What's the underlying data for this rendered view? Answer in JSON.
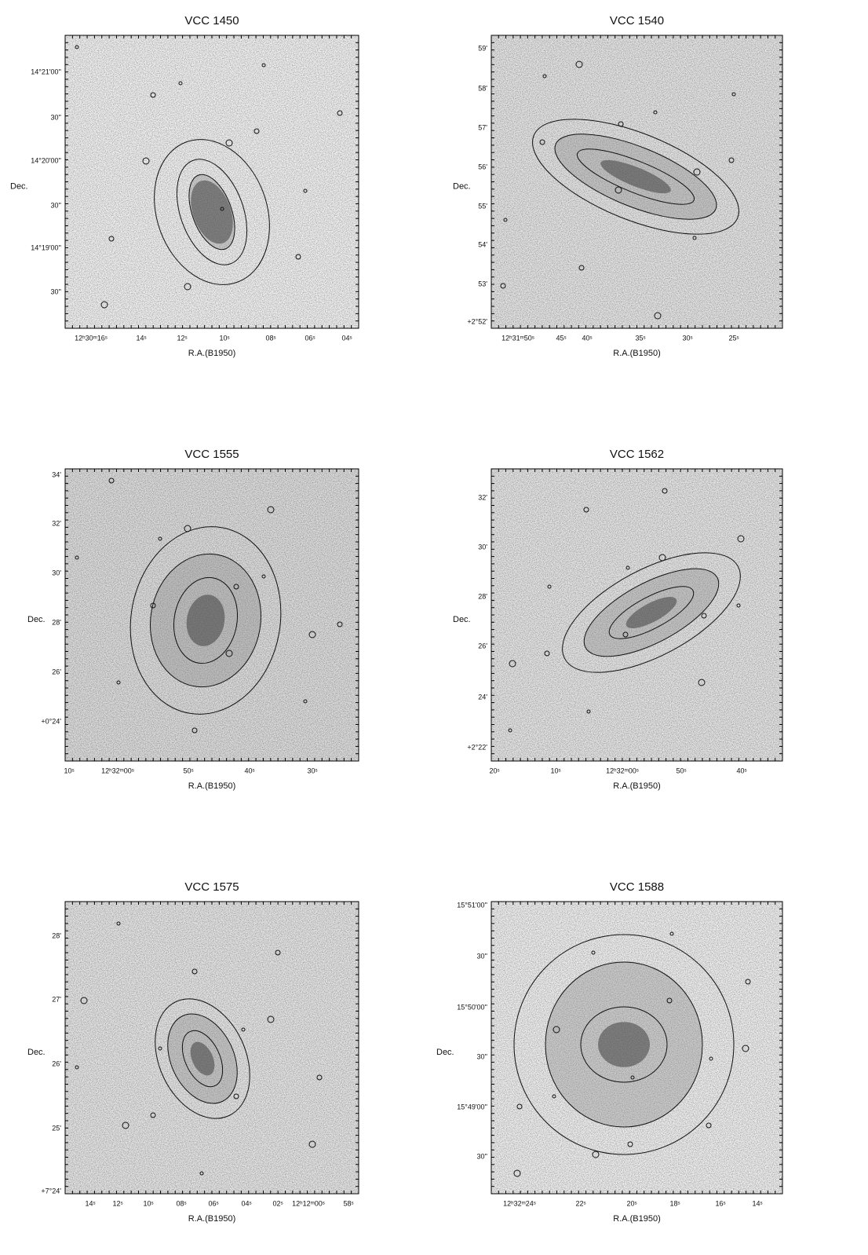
{
  "panels": [
    {
      "title": "VCC 1450",
      "y_label": "Dec.",
      "x_label": "R.A.(B1950)",
      "y_ticks": [
        "14°21'00''",
        "30''",
        "14°20'00''",
        "30''",
        "14°19'00''",
        "30''"
      ],
      "x_ticks": [
        "12ʰ30ᵐ16ˢ",
        "14ˢ",
        "12ˢ",
        "10ˢ",
        "08ˢ",
        "06ˢ",
        "04ˢ"
      ]
    },
    {
      "title": "VCC 1540",
      "y_label": "Dec.",
      "x_label": "R.A.(B1950)",
      "y_ticks": [
        "59'",
        "58'",
        "57'",
        "56'",
        "55'",
        "54'",
        "53'",
        "+2°52'"
      ],
      "x_ticks": [
        "12ʰ31ᵐ50ˢ",
        "45ˢ",
        "40ˢ",
        "35ˢ",
        "30ˢ",
        "25ˢ"
      ]
    },
    {
      "title": "VCC 1555",
      "y_label": "Dec.",
      "x_label": "R.A.(B1950)",
      "y_ticks": [
        "34'",
        "32'",
        "30'",
        "28'",
        "26'",
        "+0°24'"
      ],
      "x_ticks": [
        "10ˢ",
        "12ʰ32ᵐ00ˢ",
        "50ˢ",
        "40ˢ",
        "30ˢ"
      ]
    },
    {
      "title": "VCC 1562",
      "y_label": "Dec.",
      "x_label": "R.A.(B1950)",
      "y_ticks": [
        "32'",
        "30'",
        "28'",
        "26'",
        "24'",
        "+2°22'"
      ],
      "x_ticks": [
        "20ˢ",
        "10ˢ",
        "12ʰ32ᵐ00ˢ",
        "50ˢ",
        "40ˢ"
      ]
    },
    {
      "title": "VCC 1575",
      "y_label": "Dec.",
      "x_label": "R.A.(B1950)",
      "y_ticks": [
        "28'",
        "27'",
        "26'",
        "25'",
        "+7°24'"
      ],
      "x_ticks": [
        "14ˢ",
        "12ˢ",
        "10ˢ",
        "08ˢ",
        "06ˢ",
        "04ˢ",
        "02ˢ",
        "12ʰ12ᵐ00ˢ",
        "58ˢ"
      ]
    },
    {
      "title": "VCC 1588",
      "y_label": "Dec.",
      "x_label": "R.A.(B1950)",
      "y_ticks": [
        "15°51'00''",
        "30''",
        "15°50'00''",
        "30''",
        "15°49'00''",
        "30''"
      ],
      "x_ticks": [
        "12ʰ32ᵐ24ˢ",
        "22ˢ",
        "20ˢ",
        "18ˢ",
        "16ˢ",
        "14ˢ"
      ]
    }
  ]
}
